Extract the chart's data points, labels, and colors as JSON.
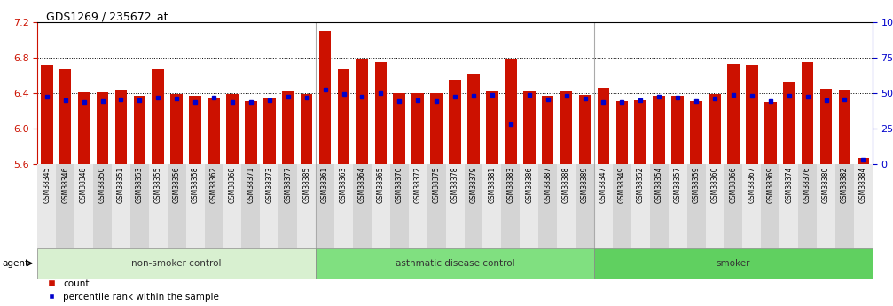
{
  "title": "GDS1269 / 235672_at",
  "ylim_left": [
    5.6,
    7.2
  ],
  "yticks_left": [
    5.6,
    6.0,
    6.4,
    6.8,
    7.2
  ],
  "yticks_right": [
    0,
    25,
    50,
    75,
    100
  ],
  "samples": [
    "GSM38345",
    "GSM38346",
    "GSM38348",
    "GSM38350",
    "GSM38351",
    "GSM38353",
    "GSM38355",
    "GSM38356",
    "GSM38358",
    "GSM38362",
    "GSM38368",
    "GSM38371",
    "GSM38373",
    "GSM38377",
    "GSM38385",
    "GSM38361",
    "GSM38363",
    "GSM38364",
    "GSM38365",
    "GSM38370",
    "GSM38372",
    "GSM38375",
    "GSM38378",
    "GSM38379",
    "GSM38381",
    "GSM38383",
    "GSM38386",
    "GSM38387",
    "GSM38388",
    "GSM38389",
    "GSM38347",
    "GSM38349",
    "GSM38352",
    "GSM38354",
    "GSM38357",
    "GSM38359",
    "GSM38360",
    "GSM38366",
    "GSM38367",
    "GSM38369",
    "GSM38374",
    "GSM38376",
    "GSM38380",
    "GSM38382",
    "GSM38384"
  ],
  "red_values": [
    6.72,
    6.67,
    6.41,
    6.41,
    6.43,
    6.37,
    6.67,
    6.39,
    6.37,
    6.35,
    6.39,
    6.31,
    6.35,
    6.42,
    6.39,
    7.1,
    6.67,
    6.78,
    6.75,
    6.4,
    6.4,
    6.4,
    6.55,
    6.62,
    6.42,
    6.79,
    6.42,
    6.37,
    6.42,
    6.38,
    6.46,
    6.31,
    6.32,
    6.37,
    6.37,
    6.31,
    6.39,
    6.73,
    6.72,
    6.3,
    6.53,
    6.75,
    6.45,
    6.43,
    5.67
  ],
  "blue_values": [
    6.36,
    6.32,
    6.3,
    6.31,
    6.33,
    6.32,
    6.35,
    6.34,
    6.3,
    6.35,
    6.3,
    6.3,
    6.32,
    6.36,
    6.35,
    6.44,
    6.39,
    6.36,
    6.4,
    6.31,
    6.32,
    6.31,
    6.36,
    6.37,
    6.38,
    6.05,
    6.38,
    6.33,
    6.37,
    6.34,
    6.3,
    6.3,
    6.32,
    6.36,
    6.35,
    6.31,
    6.34,
    6.38,
    6.37,
    6.31,
    6.37,
    6.36,
    6.32,
    6.33,
    5.65
  ],
  "groups": [
    {
      "label": "non-smoker control",
      "start": 0,
      "end": 15,
      "color": "#d8f0d0"
    },
    {
      "label": "asthmatic disease control",
      "start": 15,
      "end": 30,
      "color": "#80e080"
    },
    {
      "label": "smoker",
      "start": 30,
      "end": 45,
      "color": "#60d060"
    }
  ],
  "bar_color": "#cc1100",
  "dot_color": "#0000cc",
  "background_color": "#ffffff",
  "left_axis_color": "#cc1100",
  "right_axis_color": "#0000cc",
  "xtick_bg_odd": "#d4d4d4",
  "xtick_bg_even": "#e8e8e8"
}
